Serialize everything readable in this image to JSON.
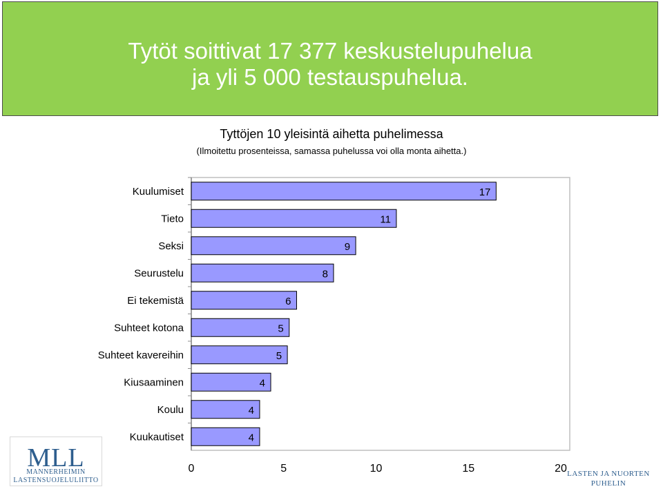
{
  "colors": {
    "banner": "#92D050",
    "bar_fill": "#9999FF",
    "bar_stroke": "#000000",
    "logo_blue": "#2E5E8E"
  },
  "headline": {
    "line1": "Tytöt soittivat 17 377 keskustelupuhelua",
    "line2": "ja yli 5 000 testauspuhelua."
  },
  "logos": {
    "mll_mark": "MLL",
    "mll_line1": "MANNERHEIMIN",
    "mll_line2": "LASTENSUOJELULIITTO",
    "lnp_line1": "LASTEN JA NUORTEN",
    "lnp_line2": "PUHELIN"
  },
  "chart_data": {
    "type": "bar",
    "orientation": "horizontal",
    "title": "Tyttöjen 10 yleisintä aihetta puhelimessa",
    "subtitle": "(Ilmoitettu prosenteissa, samassa puhelussa voi olla monta aihetta.)",
    "categories": [
      "Kuulumiset",
      "Tieto",
      "Seksi",
      "Seurustelu",
      "Ei tekemistä",
      "Suhteet kotona",
      "Suhteet kavereihin",
      "Kiusaaminen",
      "Koulu",
      "Kuukautiset"
    ],
    "values": [
      16.5,
      11.1,
      8.9,
      7.7,
      5.7,
      5.3,
      5.2,
      4.3,
      3.7,
      3.7
    ],
    "data_labels": [
      "17",
      "11",
      "9",
      "8",
      "6",
      "5",
      "5",
      "4",
      "4",
      "4"
    ],
    "xlim": [
      0,
      20
    ],
    "xticks": [
      "0",
      "5",
      "10",
      "15",
      "20"
    ],
    "grid": false,
    "legend": false
  }
}
